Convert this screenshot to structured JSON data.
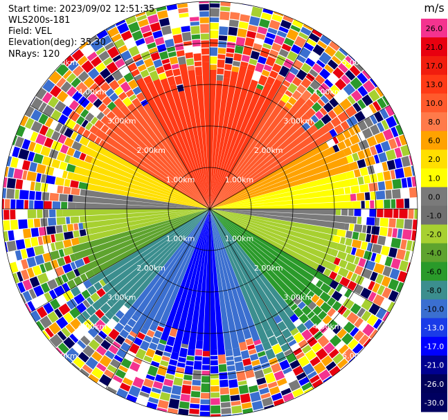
{
  "header": {
    "start_time": "Start time: 2023/09/02 12:51:35",
    "instrument": "WLS200s-181",
    "field": "Field: VEL",
    "elevation": "Elevation(deg): 35.30",
    "nrays": "NRays: 120"
  },
  "chart_data": {
    "type": "heatmap",
    "projection": "polar",
    "field": "VEL",
    "n_rays": 120,
    "range_rings_km": [
      1,
      2,
      3,
      4,
      5
    ],
    "ring_labels": [
      "1.00km",
      "2.00km",
      "3.00km",
      "4.00km",
      "5.00km"
    ],
    "range_max_km": 5.0,
    "colorbar": {
      "unit": "m/s",
      "ticks": [
        "26.0",
        "21.0",
        "17.0",
        "13.0",
        "10.0",
        "8.0",
        "6.0",
        "2.0",
        "1.0",
        "0.0",
        "-1.0",
        "-2.0",
        "-4.0",
        "-6.0",
        "-8.0",
        "-10.0",
        "-13.0",
        "-17.0",
        "-21.0",
        "-26.0",
        "-30.0"
      ],
      "colors": [
        "#f4338f",
        "#e8000f",
        "#f11d0e",
        "#ff3a16",
        "#ff5a2c",
        "#ff7a4a",
        "#ffa200",
        "#ffdf00",
        "#ffff00",
        "#7a7a7a",
        "#707070",
        "#a7d030",
        "#5ea32e",
        "#2a9a2a",
        "#3b8e8e",
        "#3b6fd0",
        "#1a3be8",
        "#0000ff",
        "#000090",
        "#00005a",
        "#000060"
      ]
    }
  }
}
